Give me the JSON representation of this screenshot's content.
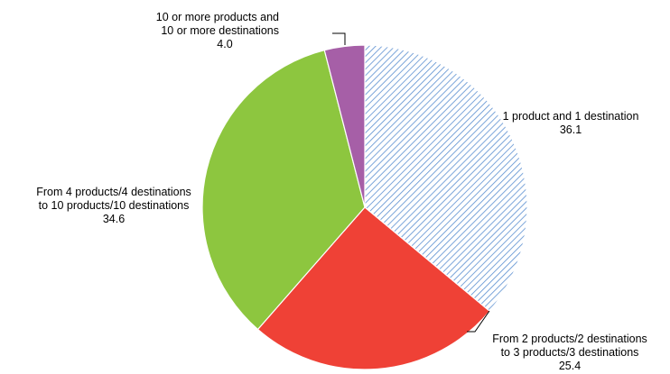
{
  "chart_data": {
    "type": "pie",
    "start_angle_deg": 0,
    "direction": "clockwise",
    "legend": "none",
    "slices": [
      {
        "label_lines": [
          "1 product and 1 destination"
        ],
        "value": 36.1,
        "value_text": "36.1",
        "color": "#5b8fd0",
        "fill": "diagonal-hatch"
      },
      {
        "label_lines": [
          "From 2 products/2 destinations",
          "to 3 products/3 destinations"
        ],
        "value": 25.4,
        "value_text": "25.4",
        "color": "#ef4136",
        "fill": "solid"
      },
      {
        "label_lines": [
          "From 4 products/4 destinations",
          "to 10 products/10 destinations"
        ],
        "value": 34.6,
        "value_text": "34.6",
        "color": "#8dc63f",
        "fill": "solid"
      },
      {
        "label_lines": [
          "10 or more products and",
          "10 or more destinations"
        ],
        "value": 4.0,
        "value_text": "4.0",
        "color": "#a65fa7",
        "fill": "solid"
      }
    ]
  }
}
